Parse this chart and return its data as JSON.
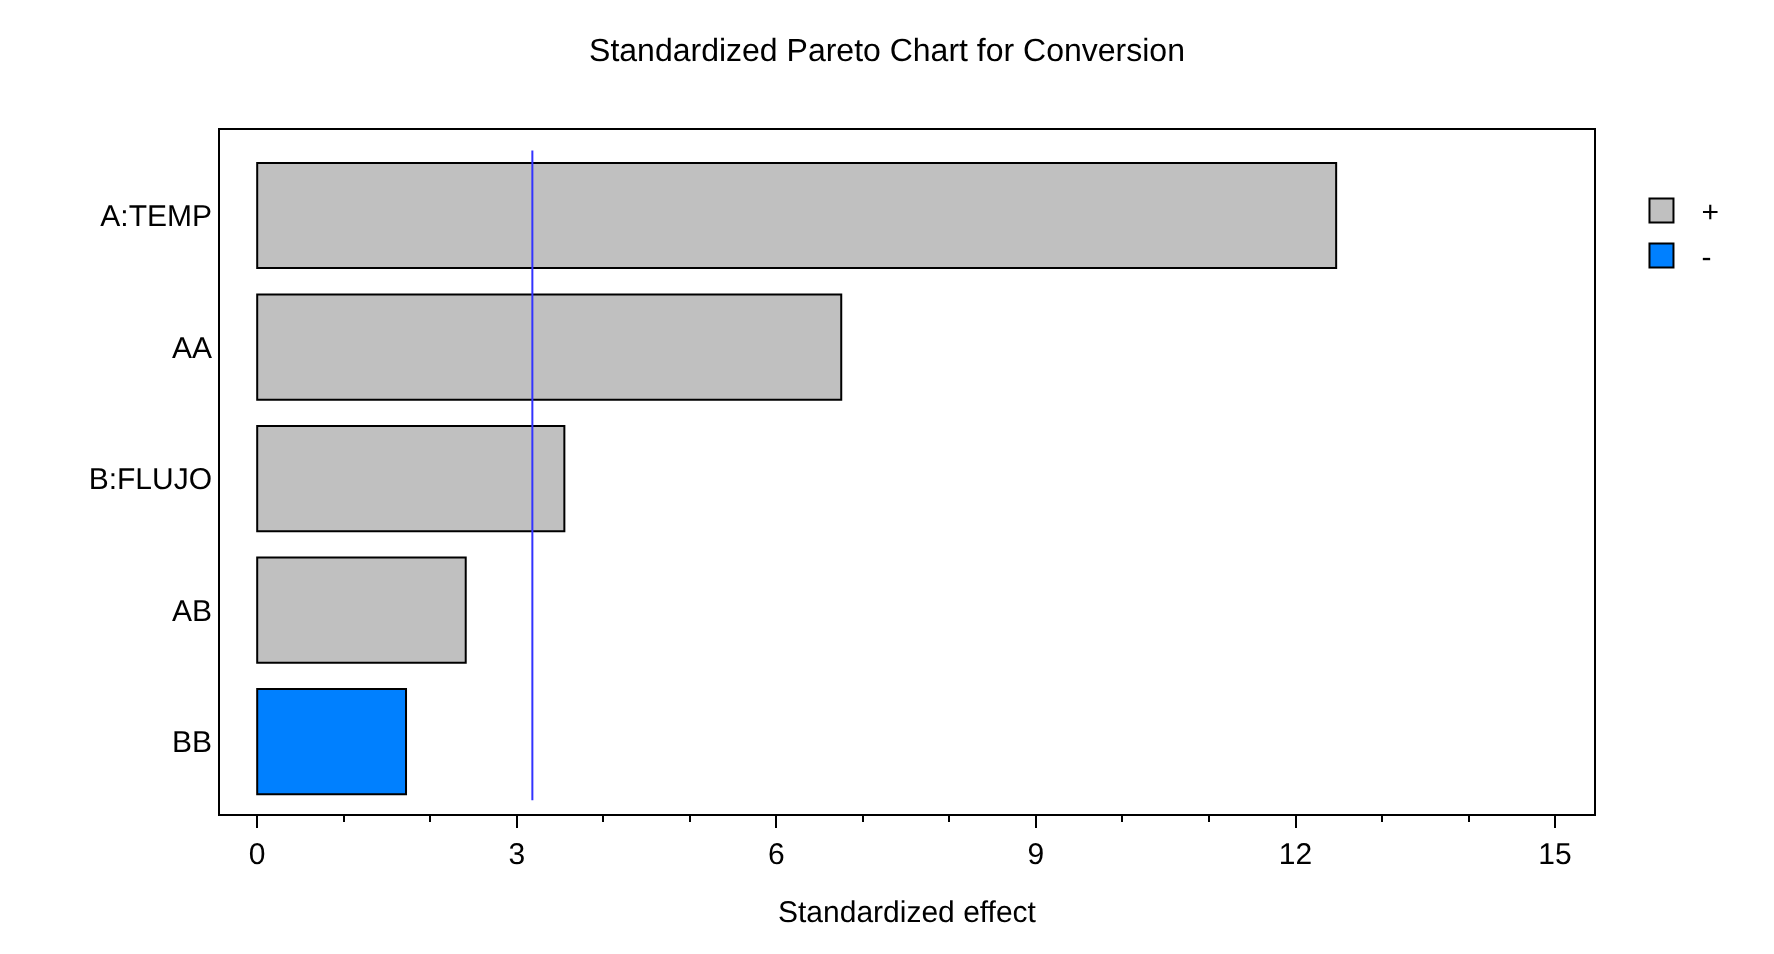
{
  "chart_data": {
    "type": "bar",
    "orientation": "horizontal",
    "title": "Standardized Pareto Chart for Conversion",
    "xlabel": "Standardized effect",
    "categories": [
      "A:TEMP",
      "AA",
      "B:FLUJO",
      "AB",
      "BB"
    ],
    "series": [
      {
        "name": "+",
        "color": "#c0c0c0",
        "values": [
          12.47,
          6.75,
          3.55,
          2.41,
          null
        ]
      },
      {
        "name": "-",
        "color": "#0080ff",
        "values": [
          null,
          null,
          null,
          null,
          1.72
        ]
      }
    ],
    "xlim": [
      -0.43,
      15.45
    ],
    "xticks": [
      0,
      3,
      6,
      9,
      12,
      15
    ],
    "ref_lines": [
      {
        "axis": "x",
        "value": 3.18,
        "color": "#3333ff"
      }
    ],
    "legend": "top right"
  }
}
